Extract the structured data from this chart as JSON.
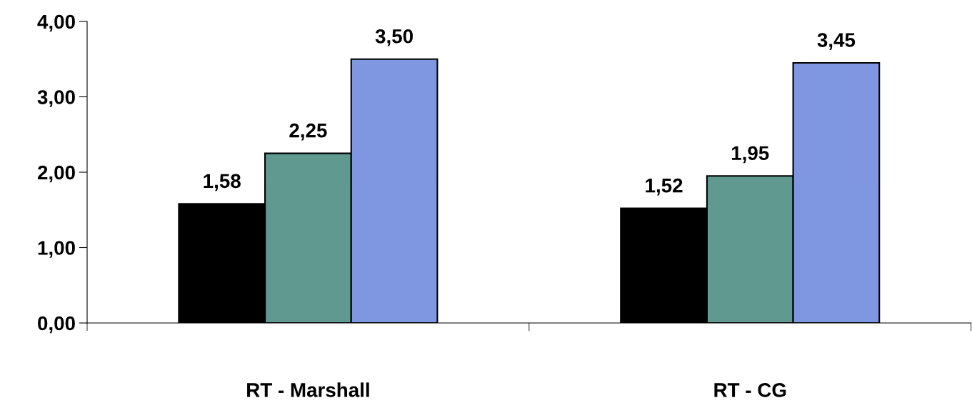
{
  "chart_data": {
    "type": "bar",
    "categories": [
      "RT - Marshall",
      "RT - CG"
    ],
    "series": [
      {
        "color": "#000000",
        "values": [
          1.58,
          1.52
        ],
        "value_labels": [
          "1,58",
          "1,52"
        ]
      },
      {
        "color": "#5f9990",
        "values": [
          2.25,
          1.95
        ],
        "value_labels": [
          "2,25",
          "1,95"
        ]
      },
      {
        "color": "#7f96e0",
        "values": [
          3.5,
          3.45
        ],
        "value_labels": [
          "3,50",
          "3,45"
        ]
      }
    ],
    "ylim": [
      0,
      4
    ],
    "yticks": [
      {
        "value": 0,
        "label": "0,00"
      },
      {
        "value": 1,
        "label": "1,00"
      },
      {
        "value": 2,
        "label": "2,00"
      },
      {
        "value": 3,
        "label": "3,00"
      },
      {
        "value": 4,
        "label": "4,00"
      }
    ],
    "grid": false,
    "legend": false
  }
}
